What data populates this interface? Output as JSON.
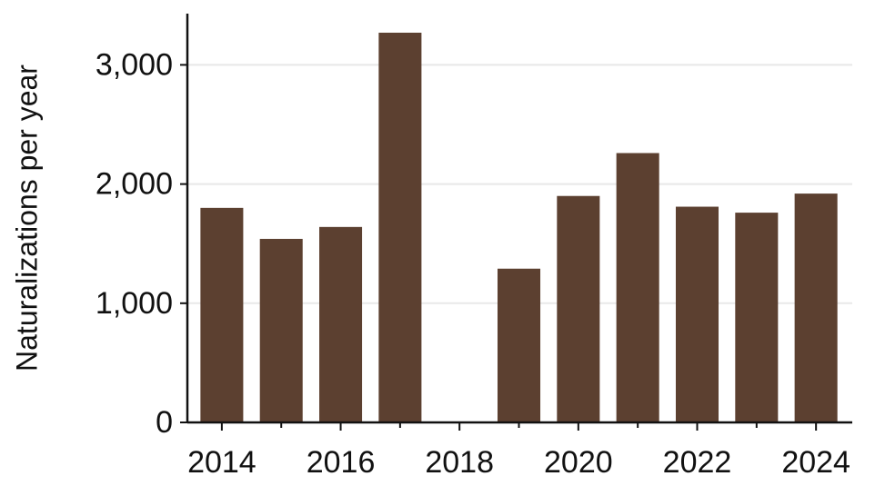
{
  "chart_data": {
    "type": "bar",
    "y_label": "Naturalizations per year",
    "x": [
      2014,
      2015,
      2016,
      2017,
      2019,
      2020,
      2021,
      2022,
      2023,
      2024
    ],
    "values": [
      1800,
      1540,
      1640,
      3270,
      1290,
      1900,
      2260,
      1810,
      1760,
      1920
    ],
    "color": "#5c4030",
    "xlim": [
      2013.42,
      2024.61
    ],
    "xticks": [
      2014,
      2016,
      2018,
      2020,
      2022,
      2024
    ],
    "xminorticks": [
      2015,
      2017,
      2019,
      2021,
      2023
    ],
    "ylim": [
      0,
      3430
    ],
    "yticks": [
      {
        "value": 0,
        "label": "0"
      },
      {
        "value": 1000,
        "label": "1,000"
      },
      {
        "value": 2000,
        "label": "2,000"
      },
      {
        "value": 3000,
        "label": "3,000"
      }
    ],
    "grid": true
  }
}
